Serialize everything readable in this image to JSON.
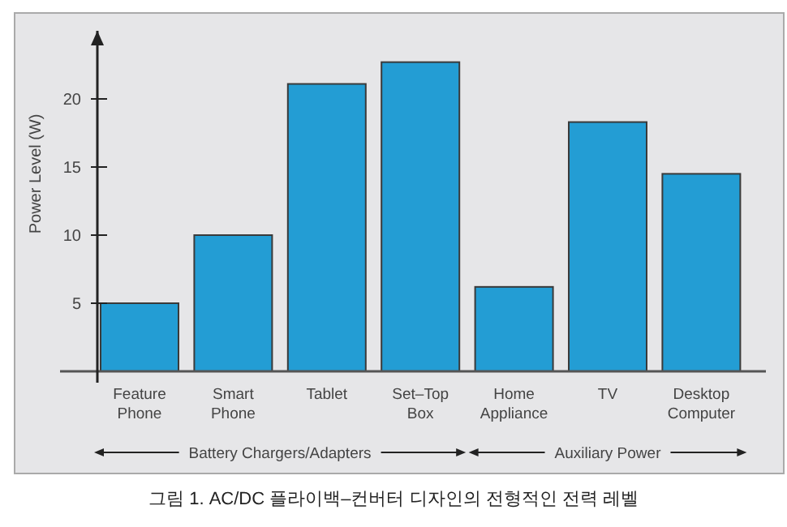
{
  "chart_data": {
    "type": "bar",
    "ylabel": "Power Level (W)",
    "categories": [
      "Feature\nPhone",
      "Smart\nPhone",
      "Tablet",
      "Set–Top\nBox",
      "Home\nAppliance",
      "TV",
      "Desktop\nComputer"
    ],
    "values": [
      5.0,
      10.0,
      21.1,
      22.7,
      6.2,
      18.3,
      14.5
    ],
    "color": "#239dd4",
    "ylim": [
      0,
      25
    ],
    "yticks": [
      5,
      10,
      15,
      20
    ],
    "grid": false,
    "annotations": [
      "Battery Chargers/Adapters",
      "Auxiliary Power",
      "그림 1. AC/DC 플라이백–컨버터 디자인의 전형적인 전력 레벨"
    ]
  }
}
